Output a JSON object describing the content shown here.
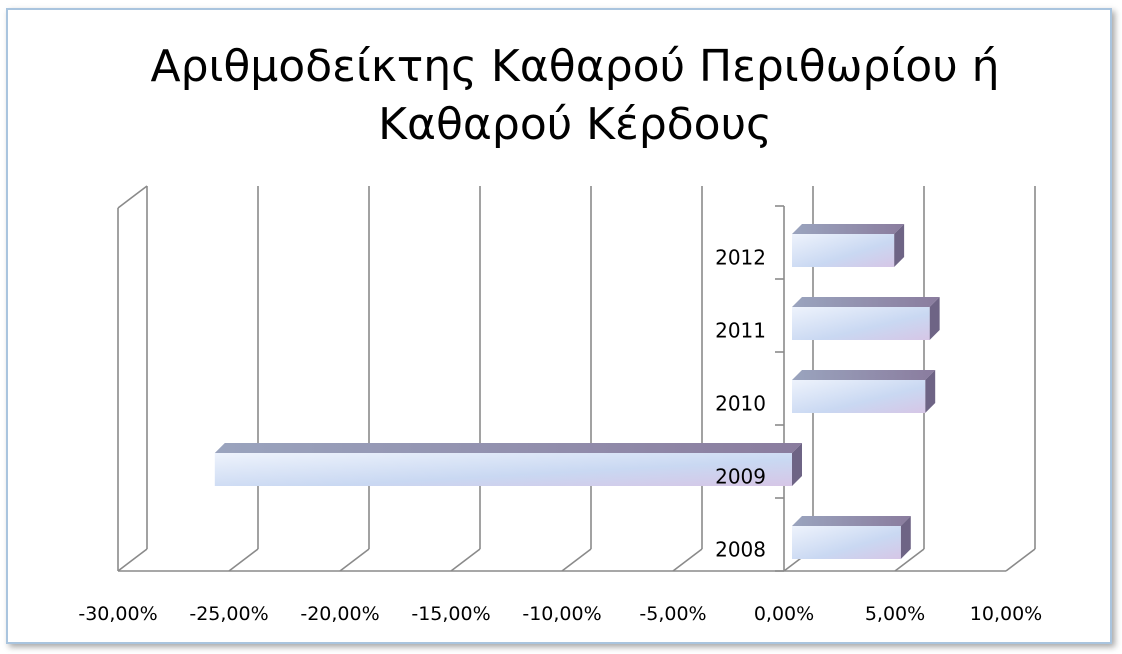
{
  "chart_data": {
    "type": "bar",
    "orientation": "horizontal",
    "style": "3d",
    "title": "Αριθμοδείκτης Καθαρού Περιθωρίου ή Καθαρού Κέρδους",
    "title_lines": [
      "Αριθμοδείκτης Καθαρού Περιθωρίου ή",
      "Καθαρού Κέρδους"
    ],
    "categories": [
      "2008",
      "2009",
      "2010",
      "2011",
      "2012"
    ],
    "values": [
      4.9,
      -26.0,
      6.0,
      6.2,
      4.6
    ],
    "xlim": [
      -30,
      10
    ],
    "x_ticks": [
      -30,
      -25,
      -20,
      -15,
      -10,
      -5,
      0,
      5,
      10
    ],
    "x_tick_labels": [
      "-30,00%",
      "-25,00%",
      "-20,00%",
      "-15,00%",
      "-10,00%",
      "-5,00%",
      "0,00%",
      "5,00%",
      "10,00%"
    ],
    "grid": true,
    "legend": "none",
    "bar_color": "#c7d7f2",
    "bar_side_color": "#6e6485"
  }
}
